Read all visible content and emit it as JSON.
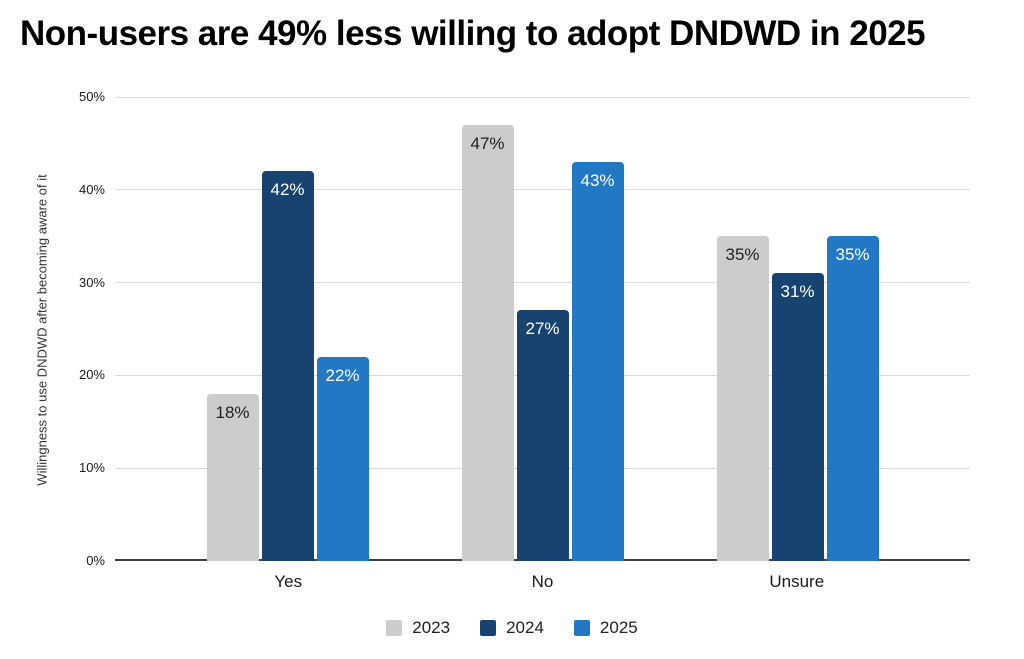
{
  "chart_data": {
    "type": "bar",
    "title": "Non-users are 49% less willing to adopt DNDWD in 2025",
    "ylabel": "Willingness to use DNDWD after becoming aware of it",
    "xlabel": "",
    "categories": [
      "Yes",
      "No",
      "Unsure"
    ],
    "series": [
      {
        "name": "2023",
        "color": "#cccccc",
        "label_color": "#212121",
        "values": [
          18,
          47,
          35
        ],
        "labels": [
          "18%",
          "47%",
          "35%"
        ]
      },
      {
        "name": "2024",
        "color": "#174371",
        "label_color": "#ffffff",
        "values": [
          42,
          27,
          31
        ],
        "labels": [
          "42%",
          "27%",
          "31%"
        ]
      },
      {
        "name": "2025",
        "color": "#2278c4",
        "label_color": "#ffffff",
        "values": [
          22,
          43,
          35
        ],
        "labels": [
          "22%",
          "43%",
          "35%"
        ]
      }
    ],
    "ylim": [
      0,
      50
    ],
    "yticks": [
      0,
      10,
      20,
      30,
      40,
      50
    ],
    "ytick_labels": [
      "0%",
      "10%",
      "20%",
      "30%",
      "40%",
      "50%"
    ],
    "grid": true,
    "legend_position": "bottom",
    "gridline_color": "#d9d9d9",
    "axis_line_color": "#424242",
    "background_color": "#ffffff",
    "title_color": "#000000"
  }
}
